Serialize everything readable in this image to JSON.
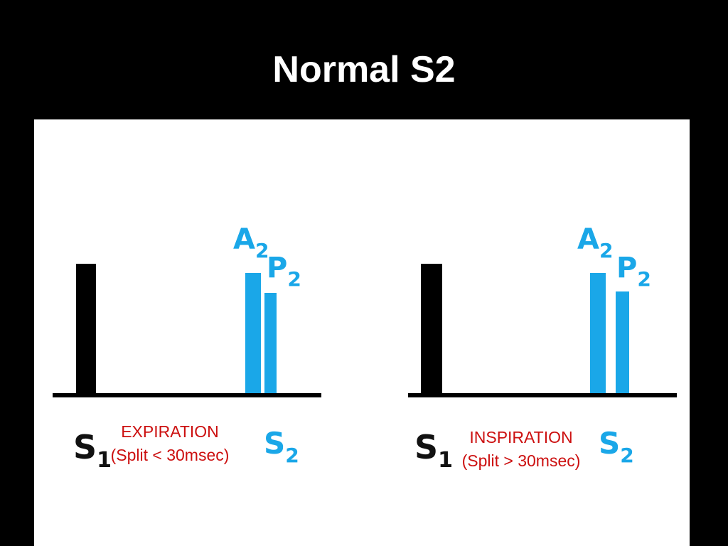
{
  "slide": {
    "title": "Normal S2"
  },
  "colors": {
    "s1": "#000000",
    "s2_components": "#1aa7e8",
    "caption": "#cc1010"
  },
  "diagrams": [
    {
      "phase": "expiration",
      "caption_line1": "EXPIRATION",
      "caption_line2": "(Split < 30msec)",
      "labels": {
        "s1": "S",
        "s1_sub": "1",
        "s2": "S",
        "s2_sub": "2",
        "a2": "A",
        "a2_sub": "2",
        "p2": "P",
        "p2_sub": "2"
      }
    },
    {
      "phase": "inspiration",
      "caption_line1": "INSPIRATION",
      "caption_line2": "(Split > 30msec)",
      "labels": {
        "s1": "S",
        "s1_sub": "1",
        "s2": "S",
        "s2_sub": "2",
        "a2": "A",
        "a2_sub": "2",
        "p2": "P",
        "p2_sub": "2"
      }
    }
  ]
}
